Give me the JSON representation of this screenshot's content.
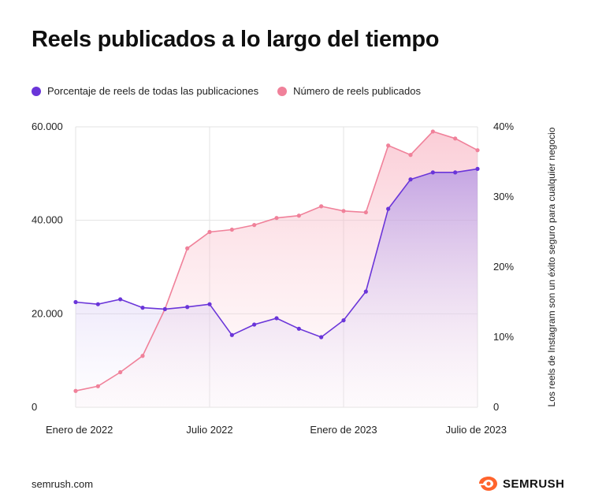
{
  "title": "Reels publicados a lo largo del tiempo",
  "legend": {
    "series_0": "Porcentaje de reels de todas las publicaciones",
    "series_1": "Número de reels publicados"
  },
  "colors": {
    "percent_series": "#6a35d9",
    "count_series": "#f0819a",
    "grid": "#e3e3e3"
  },
  "footer": {
    "source": "semrush.com",
    "brand": "SEMRUSH",
    "brand_icon": "semrush-flame-icon"
  },
  "chart_data": {
    "type": "line",
    "title": "Reels publicados a lo largo del tiempo",
    "x": [
      "2022-01",
      "2022-02",
      "2022-03",
      "2022-04",
      "2022-05",
      "2022-06",
      "2022-07",
      "2022-08",
      "2022-09",
      "2022-10",
      "2022-11",
      "2022-12",
      "2023-01",
      "2023-02",
      "2023-03",
      "2023-04",
      "2023-05",
      "2023-06",
      "2023-07"
    ],
    "x_ticks": [
      "Enero de 2022",
      "Julio 2022",
      "Enero de 2023",
      "Julio de 2023"
    ],
    "y_left": {
      "range": [
        0,
        60000
      ],
      "ticks": [
        "0",
        "20.000",
        "40.000",
        "60.000"
      ]
    },
    "y_right": {
      "range": [
        0,
        40
      ],
      "ticks": [
        "0",
        "10%",
        "20%",
        "30%",
        "40%"
      ],
      "label": "Los reels de Instagram son un éxito seguro para cualquier negocio"
    },
    "series": [
      {
        "name": "Porcentaje de reels de todas las publicaciones",
        "axis": "right",
        "values": [
          15.0,
          14.7,
          15.4,
          14.2,
          14.0,
          14.3,
          14.7,
          10.3,
          11.8,
          12.7,
          11.2,
          10.0,
          12.4,
          16.5,
          28.3,
          32.5,
          33.5,
          33.5,
          34.0
        ]
      },
      {
        "name": "Número de reels publicados",
        "axis": "left",
        "values": [
          3500,
          4500,
          7500,
          11000,
          21000,
          34000,
          37500,
          38000,
          39000,
          40500,
          41000,
          43000,
          42000,
          41700,
          56000,
          54000,
          59000,
          57500,
          55000
        ]
      }
    ],
    "grid": true,
    "legend_position": "top-left"
  }
}
